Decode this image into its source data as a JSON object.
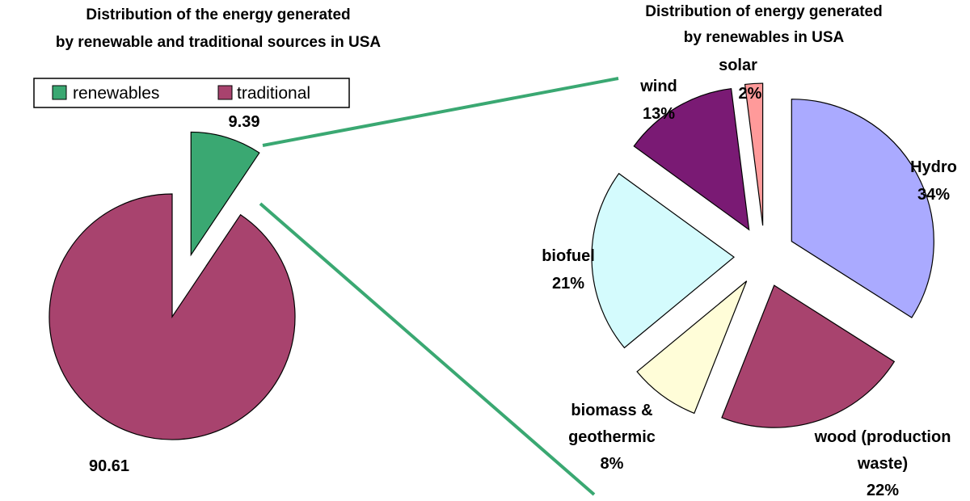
{
  "chart_data": [
    {
      "type": "pie",
      "title": "Distribution of the energy generated by renewable and traditional sources in USA",
      "title_lines": [
        "Distribution of the energy generated",
        "by renewable and traditional sources in USA"
      ],
      "legend_placement": "top",
      "slices": [
        {
          "name": "renewables",
          "value": 9.39,
          "label": "9.39",
          "color": "#3aa872",
          "exploded": true
        },
        {
          "name": "traditional",
          "value": 90.61,
          "label": "90.61",
          "color": "#a8436e",
          "exploded": false
        }
      ]
    },
    {
      "type": "pie",
      "title": "Distribution of energy generated by renewables in USA",
      "title_lines": [
        "Distribution of energy generated",
        "by renewables in USA"
      ],
      "slices": [
        {
          "name": "Hydro",
          "value": 34,
          "label_lines": [
            "Hydro",
            "34%"
          ],
          "color": "#aaaaff"
        },
        {
          "name": "wood (production waste)",
          "value": 22,
          "label_lines": [
            "wood (production",
            "waste)",
            "22%"
          ],
          "color": "#a8436e"
        },
        {
          "name": "biomass & geothermic",
          "value": 8,
          "label_lines": [
            "biomass &",
            "geothermic",
            "8%"
          ],
          "color": "#fffdd8"
        },
        {
          "name": "biofuel",
          "value": 21,
          "label_lines": [
            "biofuel",
            "21%"
          ],
          "color": "#d4fbfd"
        },
        {
          "name": "wind",
          "value": 13,
          "label_lines": [
            "wind",
            "13%"
          ],
          "color": "#7a1a74"
        },
        {
          "name": "solar",
          "value": 2,
          "label_lines": [
            "solar",
            "2%"
          ],
          "color": "#ff9a9a"
        }
      ]
    }
  ],
  "connector_color": "#3aa872"
}
